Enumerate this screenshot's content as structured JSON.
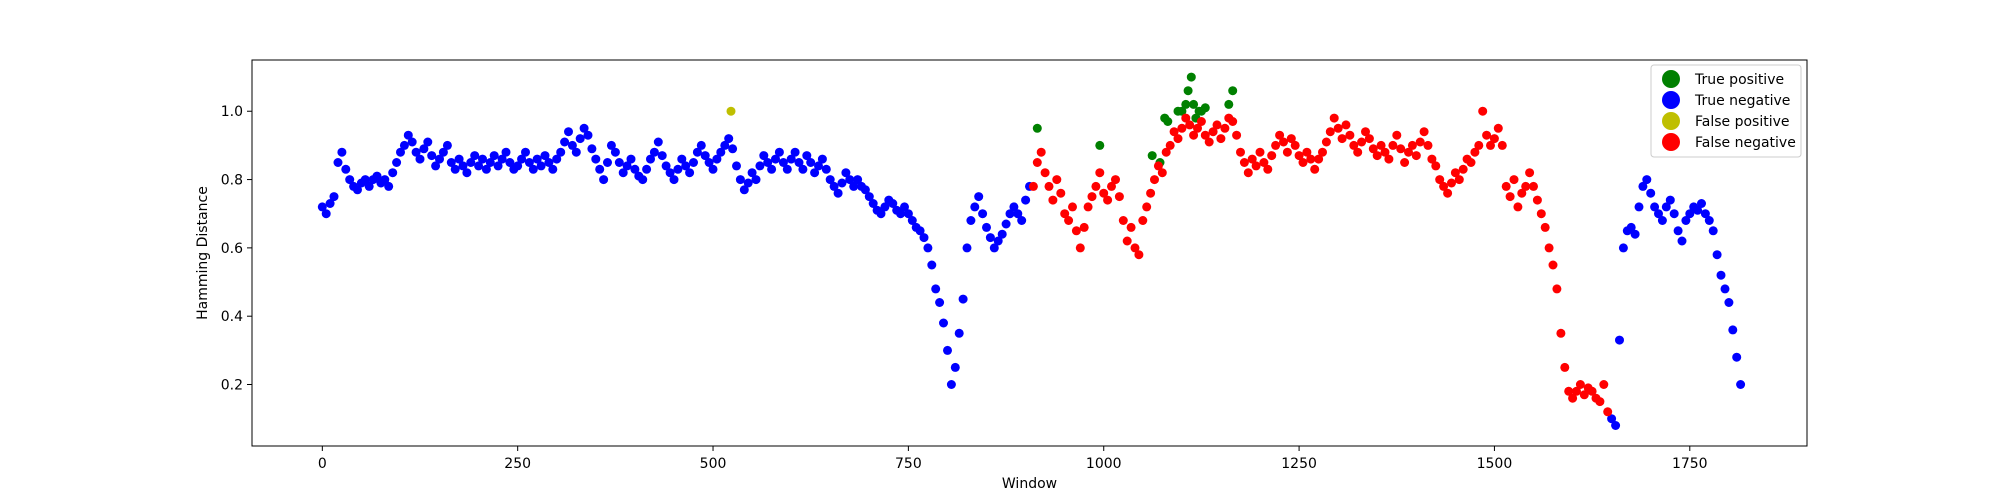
{
  "chart_data": {
    "type": "scatter",
    "title": "",
    "xlabel": "Window",
    "ylabel": "Hamming Distance",
    "xlim": [
      -90,
      1900
    ],
    "ylim": [
      0.02,
      1.15
    ],
    "xticks": [
      0,
      250,
      500,
      750,
      1000,
      1250,
      1500,
      1750
    ],
    "yticks": [
      0.2,
      0.4,
      0.6,
      0.8,
      1.0
    ],
    "xtick_labels": [
      "0",
      "250",
      "500",
      "750",
      "1000",
      "1250",
      "1500",
      "1750"
    ],
    "ytick_labels": [
      "0.2",
      "0.4",
      "0.6",
      "0.8",
      "1.0"
    ],
    "grid": false,
    "legend": "top-right",
    "series": [
      {
        "name": "True positive",
        "color": "#008000",
        "x": [
          915,
          995,
          1062,
          1072,
          1078,
          1082,
          1095,
          1100,
          1105,
          1108,
          1112,
          1115,
          1118,
          1122,
          1125,
          1130,
          1160,
          1165
        ],
        "y": [
          0.95,
          0.9,
          0.87,
          0.85,
          0.98,
          0.97,
          1.0,
          1.0,
          1.02,
          1.06,
          1.1,
          1.02,
          0.98,
          1.0,
          1.0,
          1.01,
          1.02,
          1.06
        ]
      },
      {
        "name": "True negative",
        "color": "#0000ff",
        "x": [
          0,
          5,
          10,
          15,
          20,
          25,
          30,
          35,
          40,
          45,
          50,
          55,
          60,
          65,
          70,
          75,
          80,
          85,
          90,
          95,
          100,
          105,
          110,
          115,
          120,
          125,
          130,
          135,
          140,
          145,
          150,
          155,
          160,
          165,
          170,
          175,
          180,
          185,
          190,
          195,
          200,
          205,
          210,
          215,
          220,
          225,
          230,
          235,
          240,
          245,
          250,
          255,
          260,
          265,
          270,
          275,
          280,
          285,
          290,
          295,
          300,
          305,
          310,
          315,
          320,
          325,
          330,
          335,
          340,
          345,
          350,
          355,
          360,
          365,
          370,
          375,
          380,
          385,
          390,
          395,
          400,
          405,
          410,
          415,
          420,
          425,
          430,
          435,
          440,
          445,
          450,
          455,
          460,
          465,
          470,
          475,
          480,
          485,
          490,
          495,
          500,
          505,
          510,
          515,
          520,
          525,
          530,
          535,
          540,
          545,
          550,
          555,
          560,
          565,
          570,
          575,
          580,
          585,
          590,
          595,
          600,
          605,
          610,
          615,
          620,
          625,
          630,
          635,
          640,
          645,
          650,
          655,
          660,
          665,
          670,
          675,
          680,
          685,
          690,
          695,
          700,
          705,
          710,
          715,
          720,
          725,
          730,
          735,
          740,
          745,
          750,
          755,
          760,
          765,
          770,
          775,
          780,
          785,
          790,
          795,
          800,
          805,
          810,
          815,
          820,
          825,
          830,
          835,
          840,
          845,
          850,
          855,
          860,
          865,
          870,
          875,
          880,
          885,
          890,
          895,
          900,
          905,
          1650,
          1655,
          1660,
          1665,
          1670,
          1675,
          1680,
          1685,
          1690,
          1695,
          1700,
          1705,
          1710,
          1715,
          1720,
          1725,
          1730,
          1735,
          1740,
          1745,
          1750,
          1755,
          1760,
          1765,
          1770,
          1775,
          1780,
          1785,
          1790,
          1795,
          1800,
          1805,
          1810,
          1815
        ],
        "y": [
          0.72,
          0.7,
          0.73,
          0.75,
          0.85,
          0.88,
          0.83,
          0.8,
          0.78,
          0.77,
          0.79,
          0.8,
          0.78,
          0.8,
          0.81,
          0.79,
          0.8,
          0.78,
          0.82,
          0.85,
          0.88,
          0.9,
          0.93,
          0.91,
          0.88,
          0.86,
          0.89,
          0.91,
          0.87,
          0.84,
          0.86,
          0.88,
          0.9,
          0.85,
          0.83,
          0.86,
          0.84,
          0.82,
          0.85,
          0.87,
          0.84,
          0.86,
          0.83,
          0.85,
          0.87,
          0.84,
          0.86,
          0.88,
          0.85,
          0.83,
          0.84,
          0.86,
          0.88,
          0.85,
          0.83,
          0.86,
          0.84,
          0.87,
          0.85,
          0.83,
          0.86,
          0.88,
          0.91,
          0.94,
          0.9,
          0.88,
          0.92,
          0.95,
          0.93,
          0.89,
          0.86,
          0.83,
          0.8,
          0.85,
          0.9,
          0.88,
          0.85,
          0.82,
          0.84,
          0.86,
          0.83,
          0.81,
          0.8,
          0.83,
          0.86,
          0.88,
          0.91,
          0.87,
          0.84,
          0.82,
          0.8,
          0.83,
          0.86,
          0.84,
          0.82,
          0.85,
          0.88,
          0.9,
          0.87,
          0.85,
          0.83,
          0.86,
          0.88,
          0.9,
          0.92,
          0.89,
          0.84,
          0.8,
          0.77,
          0.79,
          0.82,
          0.8,
          0.84,
          0.87,
          0.85,
          0.83,
          0.86,
          0.88,
          0.85,
          0.83,
          0.86,
          0.88,
          0.85,
          0.83,
          0.87,
          0.85,
          0.82,
          0.84,
          0.86,
          0.83,
          0.8,
          0.78,
          0.76,
          0.79,
          0.82,
          0.8,
          0.78,
          0.8,
          0.78,
          0.77,
          0.75,
          0.73,
          0.71,
          0.7,
          0.72,
          0.74,
          0.73,
          0.71,
          0.7,
          0.72,
          0.7,
          0.68,
          0.66,
          0.65,
          0.63,
          0.6,
          0.55,
          0.48,
          0.44,
          0.38,
          0.3,
          0.2,
          0.25,
          0.35,
          0.45,
          0.6,
          0.68,
          0.72,
          0.75,
          0.7,
          0.66,
          0.63,
          0.6,
          0.62,
          0.64,
          0.67,
          0.7,
          0.72,
          0.7,
          0.68,
          0.74,
          0.78,
          0.1,
          0.08,
          0.33,
          0.6,
          0.65,
          0.66,
          0.64,
          0.72,
          0.78,
          0.8,
          0.76,
          0.72,
          0.7,
          0.68,
          0.72,
          0.74,
          0.7,
          0.65,
          0.62,
          0.68,
          0.7,
          0.72,
          0.71,
          0.73,
          0.7,
          0.68,
          0.65,
          0.58,
          0.52,
          0.48,
          0.44,
          0.36,
          0.28,
          0.2
        ]
      },
      {
        "name": "False positive",
        "color": "#bfbf00",
        "x": [
          523
        ],
        "y": [
          1.0
        ]
      },
      {
        "name": "False negative",
        "color": "#ff0000",
        "x": [
          910,
          915,
          920,
          925,
          930,
          935,
          940,
          945,
          950,
          955,
          960,
          965,
          970,
          975,
          980,
          985,
          990,
          995,
          1000,
          1005,
          1010,
          1015,
          1020,
          1025,
          1030,
          1035,
          1040,
          1045,
          1050,
          1055,
          1060,
          1065,
          1070,
          1075,
          1080,
          1085,
          1090,
          1095,
          1100,
          1105,
          1110,
          1115,
          1120,
          1125,
          1130,
          1135,
          1140,
          1145,
          1150,
          1155,
          1160,
          1165,
          1170,
          1175,
          1180,
          1185,
          1190,
          1195,
          1200,
          1205,
          1210,
          1215,
          1220,
          1225,
          1230,
          1235,
          1240,
          1245,
          1250,
          1255,
          1260,
          1265,
          1270,
          1275,
          1280,
          1285,
          1290,
          1295,
          1300,
          1305,
          1310,
          1315,
          1320,
          1325,
          1330,
          1335,
          1340,
          1345,
          1350,
          1355,
          1360,
          1365,
          1370,
          1375,
          1380,
          1385,
          1390,
          1395,
          1400,
          1405,
          1410,
          1415,
          1420,
          1425,
          1430,
          1435,
          1440,
          1445,
          1450,
          1455,
          1460,
          1465,
          1470,
          1475,
          1480,
          1485,
          1490,
          1495,
          1500,
          1505,
          1510,
          1515,
          1520,
          1525,
          1530,
          1535,
          1540,
          1545,
          1550,
          1555,
          1560,
          1565,
          1570,
          1575,
          1580,
          1585,
          1590,
          1595,
          1600,
          1605,
          1610,
          1615,
          1620,
          1625,
          1630,
          1635,
          1640,
          1645
        ],
        "y": [
          0.78,
          0.85,
          0.88,
          0.82,
          0.78,
          0.74,
          0.8,
          0.76,
          0.7,
          0.68,
          0.72,
          0.65,
          0.6,
          0.66,
          0.72,
          0.75,
          0.78,
          0.82,
          0.76,
          0.74,
          0.78,
          0.8,
          0.75,
          0.68,
          0.62,
          0.66,
          0.6,
          0.58,
          0.68,
          0.72,
          0.76,
          0.8,
          0.84,
          0.82,
          0.88,
          0.9,
          0.94,
          0.92,
          0.95,
          0.98,
          0.96,
          0.93,
          0.95,
          0.97,
          0.93,
          0.91,
          0.94,
          0.96,
          0.92,
          0.95,
          0.98,
          0.97,
          0.93,
          0.88,
          0.85,
          0.82,
          0.86,
          0.84,
          0.88,
          0.85,
          0.83,
          0.87,
          0.9,
          0.93,
          0.91,
          0.88,
          0.92,
          0.9,
          0.87,
          0.85,
          0.88,
          0.86,
          0.83,
          0.86,
          0.88,
          0.91,
          0.94,
          0.98,
          0.95,
          0.92,
          0.96,
          0.93,
          0.9,
          0.88,
          0.91,
          0.94,
          0.92,
          0.89,
          0.87,
          0.9,
          0.88,
          0.86,
          0.9,
          0.93,
          0.89,
          0.85,
          0.88,
          0.9,
          0.87,
          0.91,
          0.94,
          0.9,
          0.86,
          0.84,
          0.8,
          0.78,
          0.76,
          0.79,
          0.82,
          0.8,
          0.83,
          0.86,
          0.85,
          0.88,
          0.9,
          1.0,
          0.93,
          0.9,
          0.92,
          0.95,
          0.9,
          0.78,
          0.75,
          0.8,
          0.72,
          0.76,
          0.78,
          0.82,
          0.78,
          0.74,
          0.7,
          0.66,
          0.6,
          0.55,
          0.48,
          0.35,
          0.25,
          0.18,
          0.16,
          0.18,
          0.2,
          0.17,
          0.19,
          0.18,
          0.16,
          0.15,
          0.2,
          0.12
        ]
      }
    ]
  }
}
